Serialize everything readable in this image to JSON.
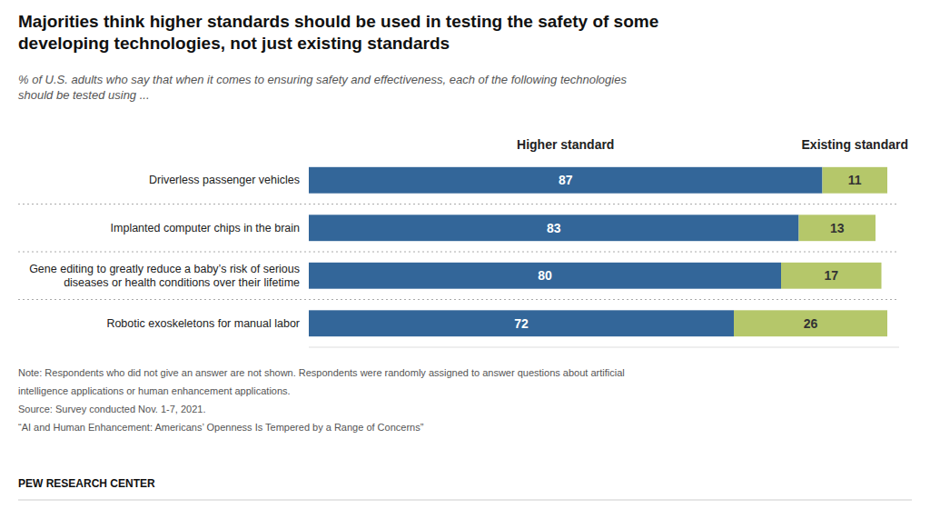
{
  "chart_data": {
    "type": "bar",
    "orientation": "horizontal",
    "stacked": true,
    "data_labels": true,
    "grid": false,
    "legend": "top",
    "tick_labels": "y",
    "title": "Majorities think higher standards should be used in testing the safety of some\ndeveloping technologies, not just existing standards",
    "subtitle": "% of U.S. adults who say that when it comes to ensuring safety and effectiveness, each of the following technologies\nshould be tested using ...",
    "categories": [
      "Driverless passenger vehicles",
      "Implanted computer chips in the brain",
      "Gene editing to greatly reduce a baby’s risk of serious\ndiseases or health conditions over their lifetime",
      "Robotic exoskeletons for manual labor"
    ],
    "series": [
      {
        "name": "Higher standard",
        "color": "#336699",
        "values": [
          87,
          83,
          80,
          72
        ]
      },
      {
        "name": "Existing standard",
        "color": "#b5c76a",
        "values": [
          11,
          13,
          17,
          26
        ]
      }
    ],
    "xlim": [
      0,
      100
    ],
    "annotations": [
      "Note: Respondents who did not give an answer are not shown. Respondents were randomly assigned to answer questions about artificial",
      "intelligence applications or human enhancement applications.",
      "Source: Survey conducted Nov. 1-7, 2021.",
      "“AI and Human Enhancement: Americans’ Openness Is Tempered by a Range of Concerns”",
      "PEW RESEARCH CENTER"
    ]
  }
}
